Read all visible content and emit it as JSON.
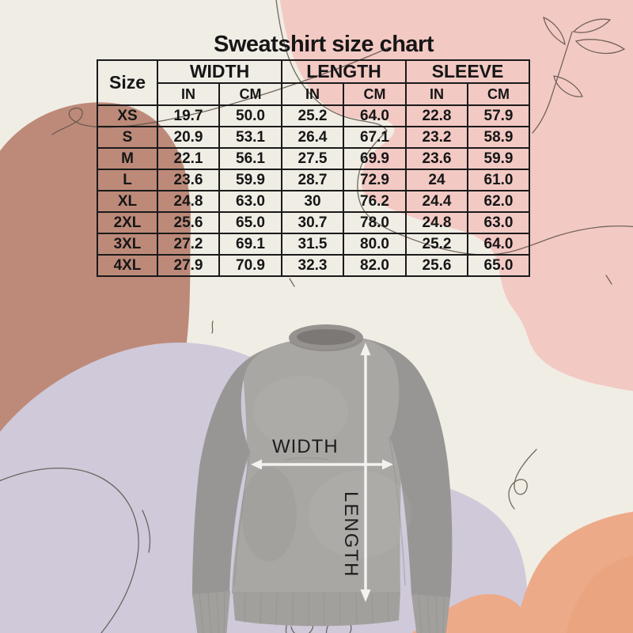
{
  "title": "Sweatshirt size chart",
  "table": {
    "size_label": "Size",
    "groups": [
      {
        "label": "WIDTH",
        "sub": [
          "IN",
          "CM"
        ]
      },
      {
        "label": "LENGTH",
        "sub": [
          "IN",
          "CM"
        ]
      },
      {
        "label": "SLEEVE",
        "sub": [
          "IN",
          "CM"
        ]
      }
    ],
    "rows": [
      {
        "size": "XS",
        "values": [
          "19.7",
          "50.0",
          "25.2",
          "64.0",
          "22.8",
          "57.9"
        ]
      },
      {
        "size": "S",
        "values": [
          "20.9",
          "53.1",
          "26.4",
          "67.1",
          "23.2",
          "58.9"
        ]
      },
      {
        "size": "M",
        "values": [
          "22.1",
          "56.1",
          "27.5",
          "69.9",
          "23.6",
          "59.9"
        ]
      },
      {
        "size": "L",
        "values": [
          "23.6",
          "59.9",
          "28.7",
          "72.9",
          "24",
          "61.0"
        ]
      },
      {
        "size": "XL",
        "values": [
          "24.8",
          "63.0",
          "30",
          "76.2",
          "24.4",
          "62.0"
        ]
      },
      {
        "size": "2XL",
        "values": [
          "25.6",
          "65.0",
          "30.7",
          "78.0",
          "24.8",
          "63.0"
        ]
      },
      {
        "size": "3XL",
        "values": [
          "27.2",
          "69.1",
          "31.5",
          "80.0",
          "25.2",
          "64.0"
        ]
      },
      {
        "size": "4XL",
        "values": [
          "27.9",
          "70.9",
          "32.3",
          "82.0",
          "25.6",
          "65.0"
        ]
      }
    ]
  },
  "diagram": {
    "width_label": "WIDTH",
    "length_label": "LENGTH"
  },
  "chart_data": {
    "type": "table",
    "title": "Sweatshirt size chart",
    "columns": [
      "Size",
      "WIDTH IN",
      "WIDTH CM",
      "LENGTH IN",
      "LENGTH CM",
      "SLEEVE IN",
      "SLEEVE CM"
    ],
    "rows": [
      [
        "XS",
        "19.7",
        "50.0",
        "25.2",
        "64.0",
        "22.8",
        "57.9"
      ],
      [
        "S",
        "20.9",
        "53.1",
        "26.4",
        "67.1",
        "23.2",
        "58.9"
      ],
      [
        "M",
        "22.1",
        "56.1",
        "27.5",
        "69.9",
        "23.6",
        "59.9"
      ],
      [
        "L",
        "23.6",
        "59.9",
        "28.7",
        "72.9",
        "24",
        "61.0"
      ],
      [
        "XL",
        "24.8",
        "63.0",
        "30",
        "76.2",
        "24.4",
        "62.0"
      ],
      [
        "2XL",
        "25.6",
        "65.0",
        "30.7",
        "78.0",
        "24.8",
        "63.0"
      ],
      [
        "3XL",
        "27.2",
        "69.1",
        "31.5",
        "80.0",
        "25.2",
        "64.0"
      ],
      [
        "4XL",
        "27.9",
        "70.9",
        "32.3",
        "82.0",
        "25.6",
        "65.0"
      ]
    ]
  },
  "colors": {
    "cream": "#f0ede5",
    "pink": "#f3c9c4",
    "terracotta": "#bd8a79",
    "lavender": "#cfc9da",
    "salmon": "#edaa88",
    "sweat-gray": "#a9a7a4",
    "sweat-gray-dark": "#989694",
    "sweat-gray-deep": "#7b7875",
    "arrow-white": "#f3f2f0",
    "line-art": "#5d5149",
    "ink": "#1a1a1a"
  }
}
